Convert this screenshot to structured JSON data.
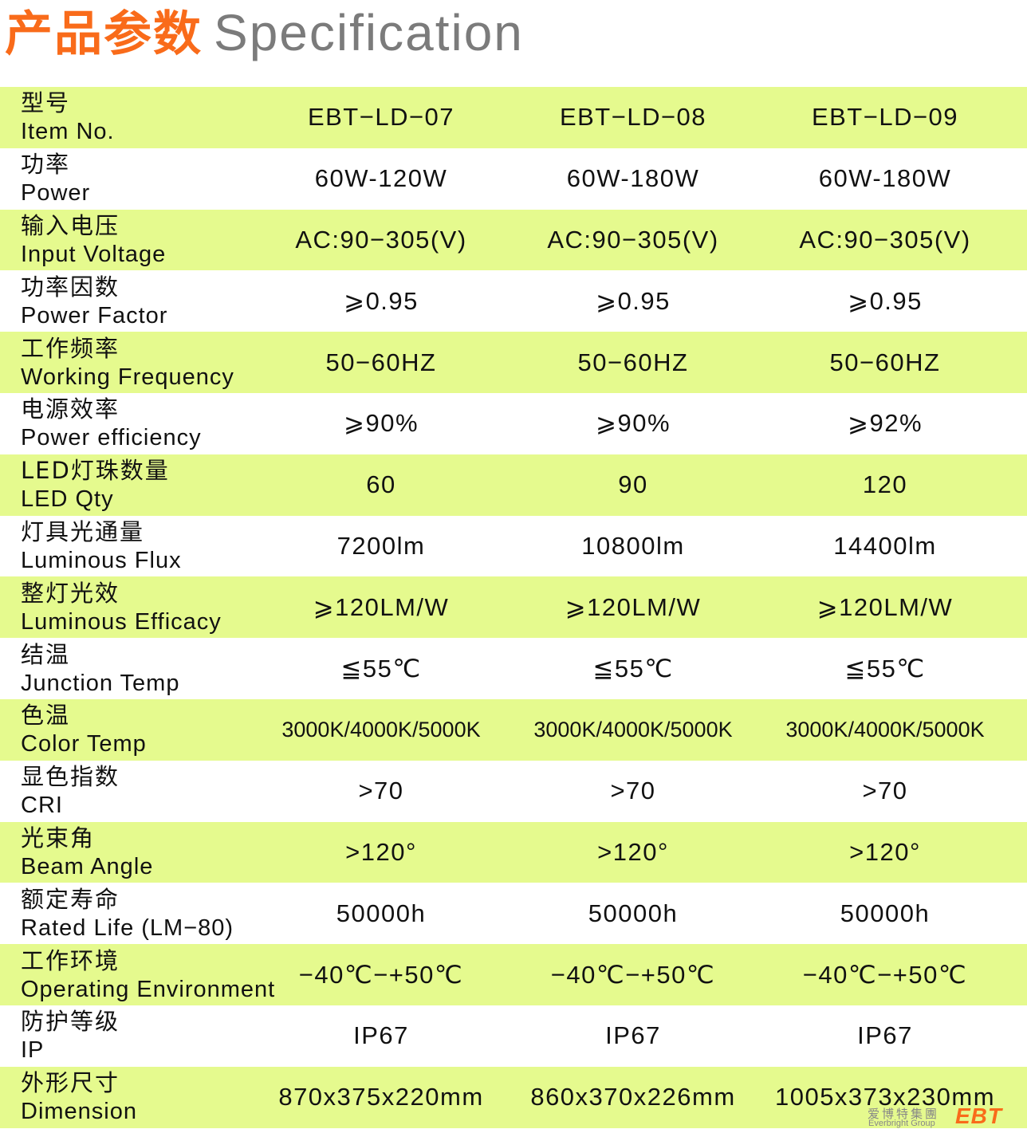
{
  "header": {
    "title_cn": "产品参数",
    "title_en": "Specification"
  },
  "colors": {
    "title_orange": "#f96b1a",
    "title_gray": "#7b7b7b",
    "row_green": "#e5fa8e"
  },
  "rows": [
    {
      "cn": "型号",
      "en": "Item No.",
      "values": [
        "EBT−LD−07",
        "EBT−LD−08",
        "EBT−LD−09"
      ]
    },
    {
      "cn": "功率",
      "en": "Power",
      "values": [
        "60W-120W",
        "60W-180W",
        "60W-180W"
      ]
    },
    {
      "cn": "输入电压",
      "en": "Input Voltage",
      "values": [
        "AC:90−305(V)",
        "AC:90−305(V)",
        "AC:90−305(V)"
      ]
    },
    {
      "cn": "功率因数",
      "en": "Power Factor",
      "values": [
        "⩾0.95",
        "⩾0.95",
        "⩾0.95"
      ]
    },
    {
      "cn": "工作频率",
      "en": "Working Frequency",
      "values": [
        "50−60HZ",
        "50−60HZ",
        "50−60HZ"
      ]
    },
    {
      "cn": "电源效率",
      "en": "Power efficiency",
      "values": [
        "⩾90%",
        "⩾90%",
        "⩾92%"
      ]
    },
    {
      "cn": "LED灯珠数量",
      "en": "LED Qty",
      "values": [
        "60",
        "90",
        "120"
      ]
    },
    {
      "cn": "灯具光通量",
      "en": "Luminous Flux",
      "values": [
        "7200lm",
        "10800lm",
        "14400lm"
      ]
    },
    {
      "cn": "整灯光效",
      "en": "Luminous Efficacy",
      "values": [
        "⩾120LM/W",
        "⩾120LM/W",
        "⩾120LM/W"
      ]
    },
    {
      "cn": "结温",
      "en": "Junction Temp",
      "values": [
        "≦55℃",
        "≦55℃",
        "≦55℃"
      ]
    },
    {
      "cn": "色温",
      "en": "Color Temp",
      "values": [
        "3000K/4000K/5000K",
        "3000K/4000K/5000K",
        "3000K/4000K/5000K"
      ]
    },
    {
      "cn": "显色指数",
      "en": "CRI",
      "values": [
        ">70",
        ">70",
        ">70"
      ]
    },
    {
      "cn": "光束角",
      "en": "Beam Angle",
      "values": [
        ">120°",
        ">120°",
        ">120°"
      ]
    },
    {
      "cn": "额定寿命",
      "en": "Rated Life (LM−80)",
      "values": [
        "50000h",
        "50000h",
        "50000h"
      ]
    },
    {
      "cn": "工作环境",
      "en": "Operating Environment",
      "values": [
        "−40℃−+50℃",
        "−40℃−+50℃",
        "−40℃−+50℃"
      ]
    },
    {
      "cn": "防护等级",
      "en": "IP",
      "values": [
        "IP67",
        "IP67",
        "IP67"
      ]
    },
    {
      "cn": "外形尺寸",
      "en": "Dimension",
      "values": [
        "870x375x220mm",
        "860x370x226mm",
        "1005x373x230mm"
      ]
    }
  ],
  "logo": {
    "cn": "爱博特集團",
    "en": "Everbright Group",
    "brand": "EBT"
  }
}
